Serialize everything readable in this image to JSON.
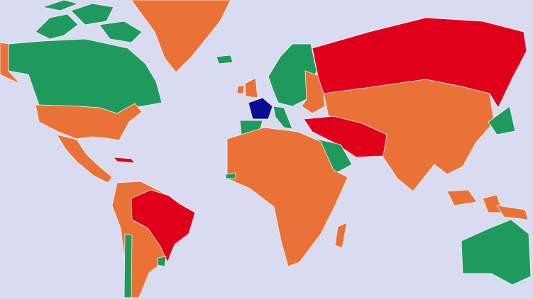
{
  "map": {
    "colors": {
      "ocean": "#d9dcf0",
      "green": "#1f9a5f",
      "orange": "#eb7236",
      "red": "#e0001b",
      "blue": "#0b0a96"
    },
    "regions": [
      {
        "id": "arctic-islands",
        "color": "green"
      },
      {
        "id": "canada",
        "color": "green"
      },
      {
        "id": "alaska",
        "color": "orange"
      },
      {
        "id": "greenland",
        "color": "orange"
      },
      {
        "id": "iceland",
        "color": "green"
      },
      {
        "id": "usa",
        "color": "orange"
      },
      {
        "id": "mexico-central-america",
        "color": "orange"
      },
      {
        "id": "cuba",
        "color": "red"
      },
      {
        "id": "south-america",
        "color": "orange"
      },
      {
        "id": "brazil",
        "color": "red"
      },
      {
        "id": "chile",
        "color": "green"
      },
      {
        "id": "uruguay",
        "color": "green"
      },
      {
        "id": "scandinavia-europe",
        "color": "green"
      },
      {
        "id": "uk-ireland",
        "color": "orange"
      },
      {
        "id": "eastern-europe",
        "color": "orange"
      },
      {
        "id": "france",
        "color": "blue"
      },
      {
        "id": "iberia",
        "color": "green"
      },
      {
        "id": "italy",
        "color": "green"
      },
      {
        "id": "russia",
        "color": "red"
      },
      {
        "id": "asia",
        "color": "orange"
      },
      {
        "id": "turkey-iran-region",
        "color": "red"
      },
      {
        "id": "saudi-arabia",
        "color": "green"
      },
      {
        "id": "africa",
        "color": "orange"
      },
      {
        "id": "senegal",
        "color": "green"
      },
      {
        "id": "madagascar",
        "color": "orange"
      },
      {
        "id": "japan",
        "color": "green"
      },
      {
        "id": "southeast-asia-islands",
        "color": "orange"
      },
      {
        "id": "australia",
        "color": "green"
      }
    ]
  }
}
